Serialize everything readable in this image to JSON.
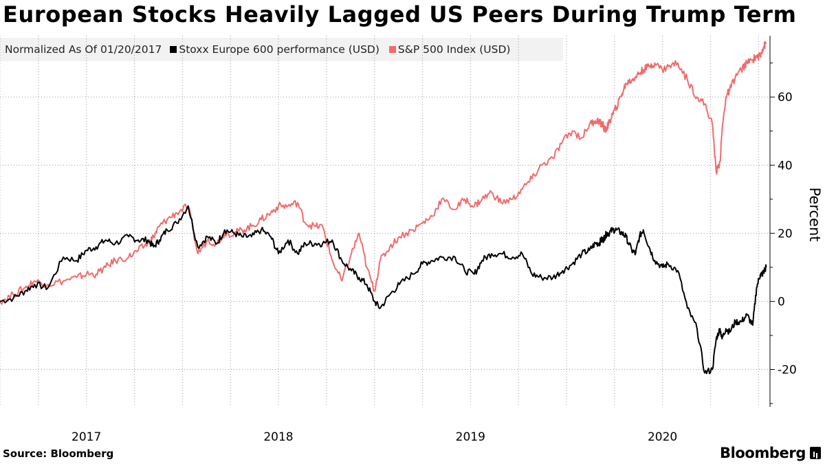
{
  "source": "Source: Bloomberg",
  "brand": "Bloomberg",
  "colors": {
    "stoxx": "#000000",
    "spx": "#f26b6b",
    "grid": "#9a9a9a",
    "legend_bg": "#f2f2f2"
  },
  "chart_data": {
    "type": "line",
    "title": "European Stocks Heavily Lagged US Peers During Trump Term",
    "subtitle": "Normalized As Of 01/20/2017",
    "xlabel": "",
    "ylabel": "Percent",
    "xlim": [
      2017.05,
      2021.06
    ],
    "ylim": [
      -31,
      78
    ],
    "y_ticks": [
      -20,
      0,
      20,
      40,
      60
    ],
    "y_tick_labels": [
      "-20",
      "0",
      "20",
      "40",
      "60"
    ],
    "x_tick_labels": [
      {
        "label": "2017",
        "x": 2017.5
      },
      {
        "label": "2018",
        "x": 2018.5
      },
      {
        "label": "2019",
        "x": 2019.5
      },
      {
        "label": "2020",
        "x": 2020.5
      }
    ],
    "x_gridlines": [
      2017.05,
      2017.25,
      2017.5,
      2017.75,
      2018.0,
      2018.25,
      2018.5,
      2018.75,
      2019.0,
      2019.25,
      2019.5,
      2019.75,
      2020.0,
      2020.25,
      2020.5,
      2020.75,
      2021.0
    ],
    "legend_position": "top-left",
    "grid": true,
    "series": [
      {
        "name": "Stoxx Europe 600 performance (USD)",
        "color": "#000000",
        "x": [
          2017.05,
          2017.12,
          2017.18,
          2017.23,
          2017.3,
          2017.38,
          2017.45,
          2017.5,
          2017.55,
          2017.6,
          2017.65,
          2017.72,
          2017.77,
          2017.82,
          2017.85,
          2017.88,
          2017.92,
          2017.97,
          2018.03,
          2018.08,
          2018.13,
          2018.18,
          2018.22,
          2018.27,
          2018.31,
          2018.36,
          2018.41,
          2018.46,
          2018.5,
          2018.55,
          2018.6,
          2018.64,
          2018.69,
          2018.73,
          2018.78,
          2018.83,
          2018.88,
          2018.92,
          2018.96,
          2019.0,
          2019.03,
          2019.08,
          2019.13,
          2019.2,
          2019.25,
          2019.3,
          2019.35,
          2019.42,
          2019.47,
          2019.52,
          2019.56,
          2019.61,
          2019.66,
          2019.72,
          2019.77,
          2019.82,
          2019.87,
          2019.93,
          2019.98,
          2020.03,
          2020.08,
          2020.12,
          2020.15,
          2020.17,
          2020.18,
          2020.19,
          2020.2,
          2020.21,
          2020.22,
          2020.24,
          2020.26,
          2020.29,
          2020.31,
          2020.34,
          2020.36,
          2020.38,
          2020.4,
          2020.43,
          2020.46,
          2020.5,
          2020.53,
          2020.58,
          2020.63,
          2020.68,
          2020.72,
          2020.76,
          2020.78,
          2020.8,
          2020.81,
          2020.83,
          2020.85,
          2020.88,
          2020.91,
          2020.94,
          2020.97,
          2020.99,
          2021.01,
          2021.02,
          2021.03,
          2021.04
        ],
        "values": [
          0,
          1,
          3,
          5,
          4,
          13,
          12,
          15,
          16,
          18,
          17,
          19,
          18,
          18,
          16,
          18,
          21,
          23,
          28,
          16,
          19,
          17,
          21,
          20,
          19,
          19,
          21,
          19,
          14,
          18,
          14,
          17,
          17,
          17,
          18,
          12,
          9,
          7,
          5,
          0,
          -2,
          2,
          5,
          8,
          11,
          12,
          13,
          13,
          9,
          8,
          12,
          14,
          14,
          13,
          14,
          8,
          7,
          7,
          9,
          11,
          14,
          15,
          17,
          17,
          18,
          18,
          19,
          20,
          20,
          21,
          21,
          20,
          19,
          15,
          14,
          19,
          21,
          16,
          12,
          10,
          11,
          9,
          -2,
          -8,
          -21,
          -20,
          -11,
          -8,
          -11,
          -8,
          -9,
          -6,
          -6,
          -4,
          -7,
          4,
          8,
          8,
          9,
          10
        ]
      },
      {
        "name": "S&P 500 Index (USD)",
        "color": "#f26b6b",
        "x": [
          2017.05,
          2017.12,
          2017.18,
          2017.23,
          2017.3,
          2017.38,
          2017.45,
          2017.5,
          2017.55,
          2017.6,
          2017.65,
          2017.72,
          2017.77,
          2017.82,
          2017.85,
          2017.88,
          2017.92,
          2017.97,
          2018.03,
          2018.08,
          2018.13,
          2018.18,
          2018.22,
          2018.27,
          2018.31,
          2018.36,
          2018.41,
          2018.46,
          2018.5,
          2018.55,
          2018.6,
          2018.64,
          2018.69,
          2018.73,
          2018.78,
          2018.83,
          2018.88,
          2018.92,
          2018.96,
          2019.0,
          2019.03,
          2019.08,
          2019.13,
          2019.2,
          2019.25,
          2019.3,
          2019.35,
          2019.42,
          2019.47,
          2019.52,
          2019.56,
          2019.61,
          2019.66,
          2019.72,
          2019.77,
          2019.82,
          2019.87,
          2019.93,
          2019.98,
          2020.03,
          2020.08,
          2020.12,
          2020.15,
          2020.17,
          2020.18,
          2020.19,
          2020.2,
          2020.21,
          2020.22,
          2020.24,
          2020.26,
          2020.29,
          2020.31,
          2020.34,
          2020.36,
          2020.38,
          2020.4,
          2020.43,
          2020.46,
          2020.5,
          2020.53,
          2020.58,
          2020.63,
          2020.68,
          2020.72,
          2020.76,
          2020.78,
          2020.8,
          2020.81,
          2020.83,
          2020.85,
          2020.88,
          2020.91,
          2020.94,
          2020.97,
          2020.99,
          2021.01,
          2021.02,
          2021.03,
          2021.04
        ],
        "values": [
          0,
          2,
          4,
          6,
          5,
          6,
          7,
          8,
          8,
          10,
          12,
          13,
          15,
          17,
          19,
          22,
          24,
          26,
          28,
          14,
          18,
          17,
          20,
          20,
          21,
          22,
          24,
          26,
          28,
          28,
          29,
          23,
          22,
          22,
          12,
          6,
          14,
          20,
          10,
          3,
          12,
          16,
          19,
          21,
          23,
          25,
          30,
          27,
          30,
          28,
          30,
          32,
          29,
          30,
          33,
          36,
          40,
          42,
          47,
          50,
          48,
          52,
          53,
          53,
          52,
          52,
          50,
          51,
          52,
          55,
          57,
          61,
          64,
          65,
          66,
          67,
          68,
          69,
          70,
          68,
          69,
          70,
          65,
          60,
          58,
          52,
          38,
          41,
          50,
          60,
          62,
          66,
          68,
          70,
          71,
          72,
          72,
          74,
          75,
          76
        ]
      }
    ]
  }
}
